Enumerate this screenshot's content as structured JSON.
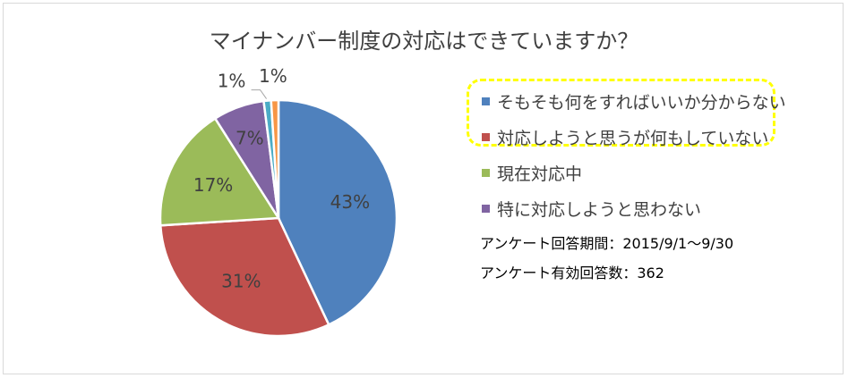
{
  "chart_data": {
    "type": "pie",
    "title": "マイナンバー制度の対応はできていますか？",
    "slices": [
      {
        "name": "そもそも何をすればいいか分からない",
        "value": 43,
        "label": "43%",
        "color": "#4f81bd"
      },
      {
        "name": "対応しようと思うが何もしていない",
        "value": 31,
        "label": "31%",
        "color": "#c0504d"
      },
      {
        "name": "現在対応中",
        "value": 17,
        "label": "17%",
        "color": "#9bbb59"
      },
      {
        "name": "特に対応しようと思わない",
        "value": 7,
        "label": "7%",
        "color": "#8064a2"
      },
      {
        "name": "",
        "value": 1,
        "label": "1%",
        "color": "#4bacc6"
      },
      {
        "name": "",
        "value": 1,
        "label": "1%",
        "color": "#f79646"
      }
    ],
    "legend": [
      "そもそも何をすればいいか分からない",
      "対応しようと思うが何もしていない",
      "現在対応中",
      "特に対応しようと思わない"
    ],
    "legend_placement": "right",
    "highlight_color": "#ffff00"
  },
  "notes": {
    "period": "アンケート回答期間：2015/9/1～9/30",
    "count": "アンケート有効回答数：362"
  }
}
